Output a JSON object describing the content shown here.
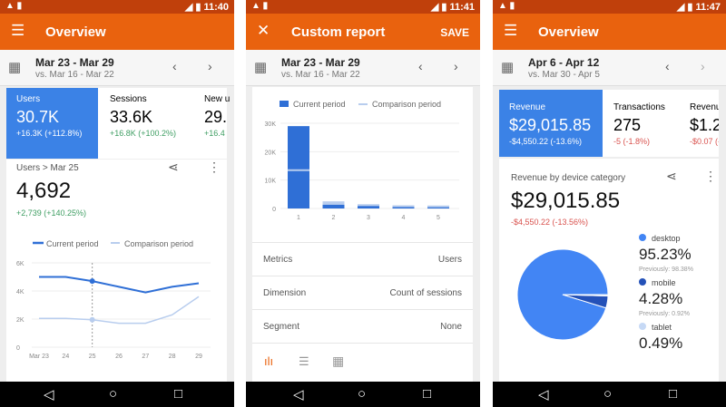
{
  "colors": {
    "status": "#c0400b",
    "toolbar": "#e9620e",
    "selected_tile": "#3b82e6",
    "positive": "#3f9e63",
    "negative": "#d9534f",
    "current": "#2f6fd6",
    "comparison": "#b8cdee"
  },
  "phones": [
    {
      "time": "11:40",
      "title": "Overview",
      "date_range": "Mar 23 - Mar 29",
      "compare_range": "vs. Mar 16 - Mar 22",
      "tiles": [
        {
          "label": "Users",
          "value": "30.7K",
          "change": "+16.3K (+112.8%)"
        },
        {
          "label": "Sessions",
          "value": "33.6K",
          "change": "+16.8K (+100.2%)"
        },
        {
          "label": "New u",
          "value": "29.",
          "change": "+16.4"
        }
      ],
      "card": {
        "breadcrumb": "Users > Mar 25",
        "value": "4,692",
        "change": "+2,739 (+140.25%)"
      }
    },
    {
      "time": "11:41",
      "title": "Custom report",
      "save": "SAVE",
      "date_range": "Mar 23 - Mar 29",
      "compare_range": "vs. Mar 16 - Mar 22",
      "rows": [
        {
          "key": "Metrics",
          "value": "Users"
        },
        {
          "key": "Dimension",
          "value": "Count of sessions"
        },
        {
          "key": "Segment",
          "value": "None"
        }
      ]
    },
    {
      "time": "11:47",
      "title": "Overview",
      "date_range": "Apr 6 - Apr 12",
      "compare_range": "vs. Mar 30 - Apr 5",
      "tiles": [
        {
          "label": "Revenue",
          "value": "$29,015.85",
          "change": "-$4,550.22 (-13.6%)"
        },
        {
          "label": "Transactions",
          "value": "275",
          "change": "-5 (-1.8%)"
        },
        {
          "label": "Revenue",
          "value": "$1.2",
          "change": "-$0.07 (-"
        }
      ],
      "card": {
        "title": "Revenue by device category",
        "value": "$29,015.85",
        "change": "-$4,550.22 (-13.56%)"
      },
      "legend": [
        {
          "name": "desktop",
          "value": "95.23%",
          "previous": "Previously: 98.38%",
          "color": "#4285f4"
        },
        {
          "name": "mobile",
          "value": "4.28%",
          "previous": "Previously: 0.92%",
          "color": "#2451b8"
        },
        {
          "name": "tablet",
          "value": "0.49%",
          "previous": "",
          "color": "#c6d9f5"
        }
      ]
    }
  ],
  "chart_data": [
    {
      "type": "line",
      "legend": [
        "Current period",
        "Comparison period"
      ],
      "categories": [
        "Mar 23",
        "24",
        "25",
        "26",
        "27",
        "28",
        "29"
      ],
      "yticks": [
        "0",
        "2K",
        "4K",
        "6K"
      ],
      "ylim": [
        0,
        6000
      ],
      "series": [
        {
          "name": "Current period",
          "values": [
            5000,
            5000,
            4700,
            4300,
            3900,
            4300,
            4550
          ]
        },
        {
          "name": "Comparison period",
          "values": [
            2050,
            2050,
            1950,
            1700,
            1700,
            2300,
            3600
          ]
        }
      ],
      "highlight": "25"
    },
    {
      "type": "bar",
      "legend": [
        "Current period",
        "Comparison period"
      ],
      "categories": [
        "1",
        "2",
        "3",
        "4",
        "5"
      ],
      "yticks": [
        "0",
        "10K",
        "20K",
        "30K"
      ],
      "ylim": [
        0,
        30000
      ],
      "series": [
        {
          "name": "Current period",
          "values": [
            29000,
            1300,
            900,
            600,
            500
          ]
        },
        {
          "name": "Comparison period",
          "values": [
            13500,
            2200,
            1200,
            800,
            700
          ]
        }
      ]
    },
    {
      "type": "pie",
      "categories": [
        "desktop",
        "mobile",
        "tablet"
      ],
      "values": [
        95.23,
        4.28,
        0.49
      ]
    }
  ]
}
